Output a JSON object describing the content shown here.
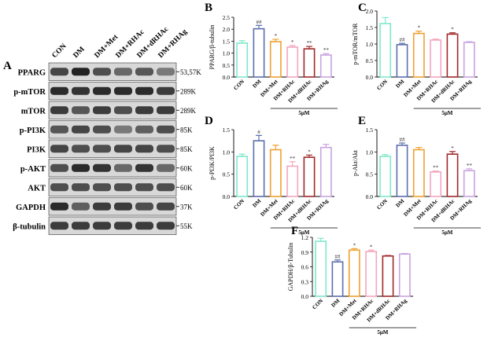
{
  "panel_a": {
    "letter": "A",
    "lanes": [
      "CON",
      "DM",
      "DM+Met",
      "DM+RHAc",
      "DM+dRHAc",
      "DM+RHAg"
    ],
    "blots": [
      {
        "label": "PPARG",
        "size": "53,57K",
        "intensity": [
          0.75,
          0.95,
          0.7,
          0.55,
          0.65,
          0.45
        ]
      },
      {
        "label": "p-mTOR",
        "size": "289K",
        "intensity": [
          0.9,
          0.85,
          0.9,
          0.9,
          0.9,
          0.8
        ]
      },
      {
        "label": "mTOR",
        "size": "289K",
        "intensity": [
          0.8,
          0.65,
          0.8,
          0.7,
          0.8,
          0.8
        ]
      },
      {
        "label": "p-PI3K",
        "size": "85K",
        "intensity": [
          0.65,
          0.75,
          0.7,
          0.45,
          0.6,
          0.7
        ]
      },
      {
        "label": "PI3K",
        "size": "85K",
        "intensity": [
          0.75,
          0.7,
          0.7,
          0.75,
          0.75,
          0.7
        ]
      },
      {
        "label": "p-AKT",
        "size": "60K",
        "intensity": [
          0.7,
          0.9,
          0.85,
          0.55,
          0.85,
          0.55
        ]
      },
      {
        "label": "AKT",
        "size": "60K",
        "intensity": [
          0.7,
          0.7,
          0.7,
          0.7,
          0.7,
          0.7
        ]
      },
      {
        "label": "GAPDH",
        "size": "37K",
        "intensity": [
          0.9,
          0.6,
          0.8,
          0.8,
          0.7,
          0.75
        ]
      },
      {
        "label": "β-tubulin",
        "size": "55K",
        "intensity": [
          0.8,
          0.8,
          0.8,
          0.8,
          0.8,
          0.8
        ]
      }
    ]
  },
  "colors": {
    "CON": "#7ee8cc",
    "DM": "#5b6fae",
    "DM+Met": "#f0a030",
    "DM+RHAc": "#f2a6bc",
    "DM+dRHAc": "#a0282a",
    "DM+RHAg": "#c9a3e0"
  },
  "dose_label": "5μM",
  "chart_data": [
    {
      "type": "bar",
      "letter": "B",
      "ylabel": "PPARG/β-tubulin",
      "ylim": [
        0,
        2.5
      ],
      "yticks": [
        "0.0",
        "0.5",
        "1.0",
        "1.5",
        "2.0",
        "2.5"
      ],
      "categories": [
        "CON",
        "DM",
        "DM+Met",
        "DM+RHAc",
        "DM+dRHAc",
        "DM+RHAg"
      ],
      "values": [
        1.42,
        2.02,
        1.48,
        1.25,
        1.18,
        0.92
      ],
      "errors": [
        0.1,
        0.14,
        0.1,
        0.07,
        0.1,
        0.06
      ],
      "annotations": [
        "",
        "##",
        "*",
        "*",
        "**",
        "**"
      ]
    },
    {
      "type": "bar",
      "letter": "C",
      "ylabel": "p-mTOR/mTOR",
      "ylim": [
        0,
        2.0
      ],
      "yticks": [
        "0.0",
        "0.5",
        "1.0",
        "1.5",
        "2.0"
      ],
      "categories": [
        "CON",
        "DM",
        "DM+Met",
        "DM+RHAc",
        "DM+dRHAc",
        "DM+RHAg"
      ],
      "values": [
        1.62,
        0.98,
        1.32,
        1.12,
        1.3,
        1.05
      ],
      "errors": [
        0.18,
        0.04,
        0.07,
        0.03,
        0.04,
        0.02
      ],
      "annotations": [
        "",
        "##",
        "*",
        "",
        "*",
        ""
      ]
    },
    {
      "type": "bar",
      "letter": "D",
      "ylabel": "p-PI3K/PI3K",
      "ylim": [
        0,
        1.5
      ],
      "yticks": [
        "0.0",
        "0.5",
        "1.0",
        "1.5"
      ],
      "categories": [
        "CON",
        "DM",
        "DM+Met",
        "DM+RHAc",
        "DM+dRHAc",
        "DM+RHAg"
      ],
      "values": [
        0.9,
        1.25,
        1.05,
        0.68,
        0.88,
        1.1
      ],
      "errors": [
        0.05,
        0.12,
        0.1,
        0.1,
        0.05,
        0.07
      ],
      "annotations": [
        "",
        "#",
        "",
        "**",
        "*",
        ""
      ]
    },
    {
      "type": "bar",
      "letter": "E",
      "ylabel": "p-Akt/Akt",
      "ylim": [
        0,
        1.5
      ],
      "yticks": [
        "0.0",
        "0.5",
        "1.0",
        "1.5"
      ],
      "categories": [
        "CON",
        "DM",
        "DM+Met",
        "DM+RHAc",
        "DM+dRHAc",
        "DM+RHAg"
      ],
      "values": [
        0.9,
        1.15,
        1.05,
        0.55,
        0.95,
        0.58
      ],
      "errors": [
        0.04,
        0.05,
        0.05,
        0.02,
        0.06,
        0.04
      ],
      "annotations": [
        "",
        "##",
        "",
        "**",
        "*",
        "**"
      ]
    },
    {
      "type": "bar",
      "letter": "F",
      "ylabel": "GAPDH/β-Tubulin",
      "ylim": [
        0,
        1.2
      ],
      "yticks": [
        "0.0",
        "0.3",
        "0.6",
        "0.9",
        "1.2"
      ],
      "categories": [
        "CON",
        "DM",
        "DM+Met",
        "DM+RHAc",
        "DM+dRHAc",
        "DM+RHAg"
      ],
      "values": [
        1.12,
        0.7,
        0.94,
        0.91,
        0.82,
        0.86
      ],
      "errors": [
        0.06,
        0.04,
        0.03,
        0.03,
        0.01,
        0.01
      ],
      "annotations": [
        "",
        "##",
        "*",
        "*",
        "",
        ""
      ]
    }
  ]
}
